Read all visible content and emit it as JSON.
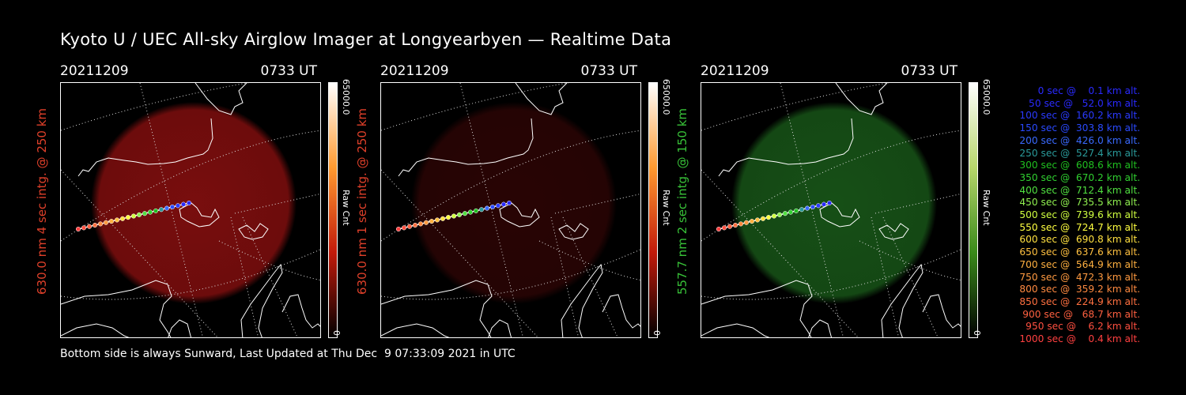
{
  "title": "Kyoto U / UEC All-sky Airglow Imager at Longyearbyen — Realtime Data",
  "panels": [
    {
      "date": "20211209",
      "time": "0733 UT",
      "ylabel": "630.0 nm 4 sec intg. @ 250 km",
      "ylabel_color": "#e0402a",
      "glow_color": "#8e1010",
      "glow_opacity": 0.85,
      "cbar_top": "65000.0",
      "cbar_mid": "Raw Cnt",
      "cbar_bottom": "0",
      "cbar_gradient": [
        "#ffffff",
        "#ff9a30",
        "#c21a0a",
        "#000000"
      ]
    },
    {
      "date": "20211209",
      "time": "0733 UT",
      "ylabel": "630.0 nm 1 sec intg. @ 250 km",
      "ylabel_color": "#e0402a",
      "glow_color": "#4a0808",
      "glow_opacity": 0.55,
      "cbar_top": "65000.0",
      "cbar_mid": "Raw Cnt",
      "cbar_bottom": "0",
      "cbar_gradient": [
        "#ffffff",
        "#ff9a30",
        "#c21a0a",
        "#000000"
      ]
    },
    {
      "date": "20211209",
      "time": "0733 UT",
      "ylabel": "557.7 nm 2 sec intg. @ 150 km",
      "ylabel_color": "#38c238",
      "glow_color": "#1e6a1e",
      "glow_opacity": 0.75,
      "cbar_top": "65000.0",
      "cbar_mid": "Raw Cnt",
      "cbar_bottom": "0",
      "cbar_gradient": [
        "#ffffff",
        "#b7d66b",
        "#3a8a1a",
        "#000000"
      ]
    }
  ],
  "footer": "Bottom side is always Sunward, Last Updated at Thu Dec  9 07:33:09 2021 in UTC",
  "legend": [
    {
      "text": "   0 sec @    0.1 km alt.",
      "color": "#2a2aff"
    },
    {
      "text": "  50 sec @   52.0 km alt.",
      "color": "#2a2aff"
    },
    {
      "text": " 100 sec @  160.2 km alt.",
      "color": "#2a3aff"
    },
    {
      "text": " 150 sec @  303.8 km alt.",
      "color": "#2a4aff"
    },
    {
      "text": " 200 sec @  426.0 km alt.",
      "color": "#3a6aff"
    },
    {
      "text": " 250 sec @  527.4 km alt.",
      "color": "#2a9a9a"
    },
    {
      "text": " 300 sec @  608.6 km alt.",
      "color": "#20c020"
    },
    {
      "text": " 350 sec @  670.2 km alt.",
      "color": "#30d030"
    },
    {
      "text": " 400 sec @  712.4 km alt.",
      "color": "#50e040"
    },
    {
      "text": " 450 sec @  735.5 km alt.",
      "color": "#90f050"
    },
    {
      "text": " 500 sec @  739.6 km alt.",
      "color": "#d0ff40"
    },
    {
      "text": " 550 sec @  724.7 km alt.",
      "color": "#ffff40"
    },
    {
      "text": " 600 sec @  690.8 km alt.",
      "color": "#ffe040"
    },
    {
      "text": " 650 sec @  637.6 km alt.",
      "color": "#ffc040"
    },
    {
      "text": " 700 sec @  564.9 km alt.",
      "color": "#ffb040"
    },
    {
      "text": " 750 sec @  472.3 km alt.",
      "color": "#ff9a40"
    },
    {
      "text": " 800 sec @  359.2 km alt.",
      "color": "#ff8a40"
    },
    {
      "text": " 850 sec @  224.9 km alt.",
      "color": "#ff7040"
    },
    {
      "text": " 900 sec @   68.7 km alt.",
      "color": "#ff6040"
    },
    {
      "text": " 950 sec @    6.2 km alt.",
      "color": "#ff5040"
    },
    {
      "text": "1000 sec @    0.4 km alt.",
      "color": "#ff4040"
    }
  ],
  "colors": {
    "background": "#000000",
    "text": "#ffffff",
    "map_lines": "#ffffff"
  }
}
